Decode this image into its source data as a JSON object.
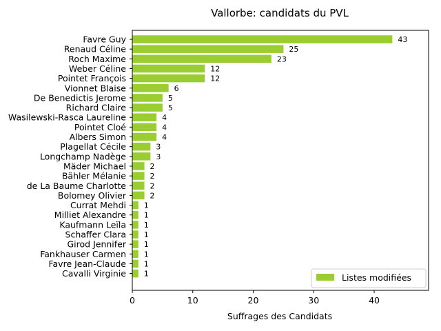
{
  "chart_data": {
    "type": "bar",
    "orientation": "horizontal",
    "title": "Vallorbe: candidats du PVL",
    "xlabel": "Suffrages des Candidats",
    "ylabel": "",
    "xlim": [
      0,
      49
    ],
    "xticks": [
      0,
      10,
      20,
      30,
      40
    ],
    "grid": false,
    "legend_position": "bottom-right",
    "bar_color": "#9acd32",
    "categories": [
      "Favre Guy",
      "Renaud Céline",
      "Roch Maxime",
      "Weber Céline",
      "Pointet François",
      "Vionnet Blaise",
      "De Benedictis Jerome",
      "Richard Claire",
      "Wasilewski-Rasca Laureline",
      "Pointet Cloé",
      "Albers Simon",
      "Plagellat Cécile",
      "Longchamp Nadège",
      "Mäder Michael",
      "Bähler Mélanie",
      "de La Baume Charlotte",
      "Bolomey Olivier",
      "Currat Mehdi",
      "Milliet Alexandre",
      "Kaufmann Leïla",
      "Schaffer Clara",
      "Girod Jennifer",
      "Fankhauser Carmen",
      "Favre Jean-Claude",
      "Cavalli Virginie"
    ],
    "series": [
      {
        "name": "Listes modifiées",
        "values": [
          43,
          25,
          23,
          12,
          12,
          6,
          5,
          5,
          4,
          4,
          4,
          3,
          3,
          2,
          2,
          2,
          2,
          1,
          1,
          1,
          1,
          1,
          1,
          1,
          1
        ]
      }
    ]
  }
}
